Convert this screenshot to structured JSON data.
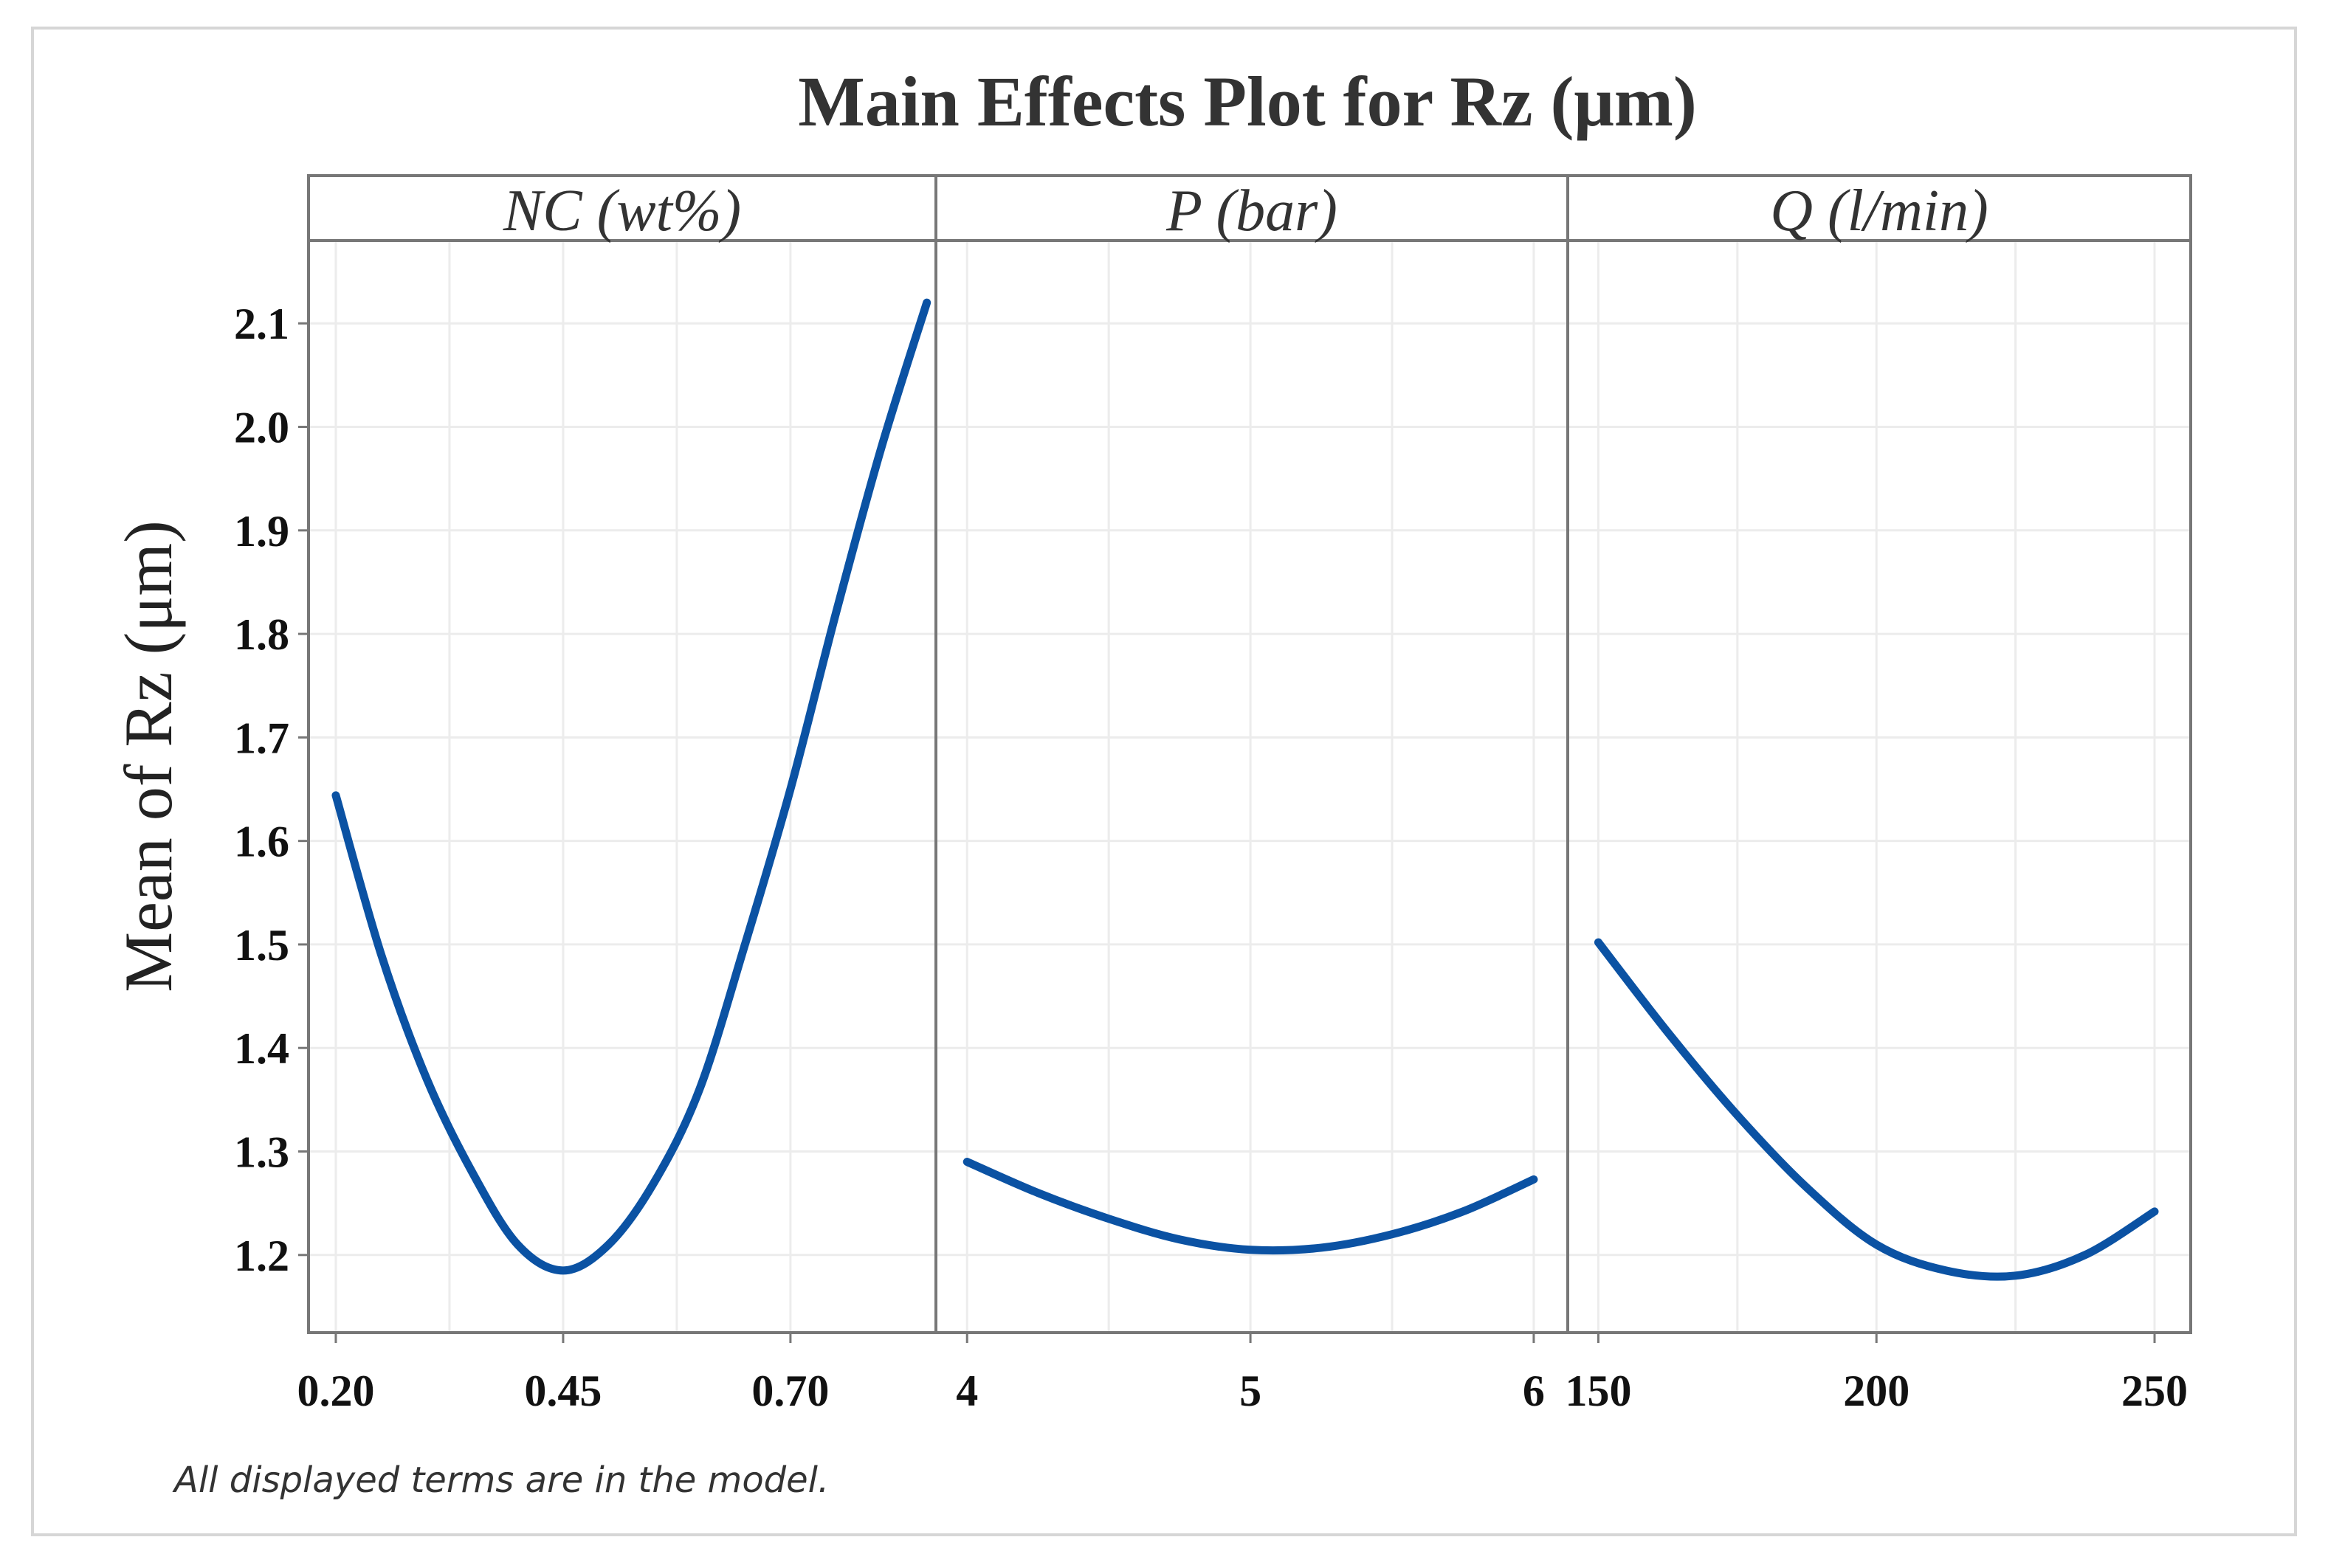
{
  "chart_data": {
    "type": "line",
    "title": "Main Effects Plot for Rz (μm)",
    "ylabel": "Mean of Rz (μm)",
    "ylim": [
      1.125,
      2.18
    ],
    "yticks": [
      "1.2",
      "1.3",
      "1.4",
      "1.5",
      "1.6",
      "1.7",
      "1.8",
      "1.9",
      "2.0",
      "2.1"
    ],
    "yticks_values": [
      1.2,
      1.3,
      1.4,
      1.5,
      1.6,
      1.7,
      1.8,
      1.9,
      2.0,
      2.1
    ],
    "line_color": "#0b52a3",
    "panels": [
      {
        "name": "NC (wt%)",
        "xlim": [
          0.17,
          0.86
        ],
        "xticks": [
          "0.20",
          "0.45",
          "0.70"
        ],
        "xticks_values": [
          0.2,
          0.45,
          0.7
        ],
        "x": [
          0.2,
          0.25,
          0.3,
          0.35,
          0.4,
          0.45,
          0.5,
          0.55,
          0.6,
          0.65,
          0.7,
          0.75,
          0.8,
          0.85
        ],
        "y": [
          1.644,
          1.49,
          1.37,
          1.28,
          1.21,
          1.185,
          1.21,
          1.27,
          1.36,
          1.5,
          1.65,
          1.82,
          1.98,
          2.12
        ]
      },
      {
        "name": "P (bar)",
        "xlim": [
          3.89,
          6.12
        ],
        "xticks": [
          "4",
          "5",
          "6"
        ],
        "xticks_values": [
          4,
          5,
          6
        ],
        "x": [
          4.0,
          4.25,
          4.5,
          4.75,
          5.0,
          5.25,
          5.5,
          5.75,
          6.0
        ],
        "y": [
          1.29,
          1.26,
          1.235,
          1.215,
          1.205,
          1.207,
          1.22,
          1.242,
          1.273
        ]
      },
      {
        "name": "Q (l/min)",
        "xlim": [
          144.5,
          256.5
        ],
        "xticks": [
          "150",
          "200",
          "250"
        ],
        "xticks_values": [
          150,
          200,
          250
        ],
        "x": [
          150,
          162.5,
          175,
          187.5,
          200,
          212.5,
          225,
          237.5,
          250
        ],
        "y": [
          1.502,
          1.415,
          1.335,
          1.265,
          1.21,
          1.185,
          1.18,
          1.2,
          1.242
        ]
      }
    ]
  },
  "footnote": "All displayed terms are in the model."
}
